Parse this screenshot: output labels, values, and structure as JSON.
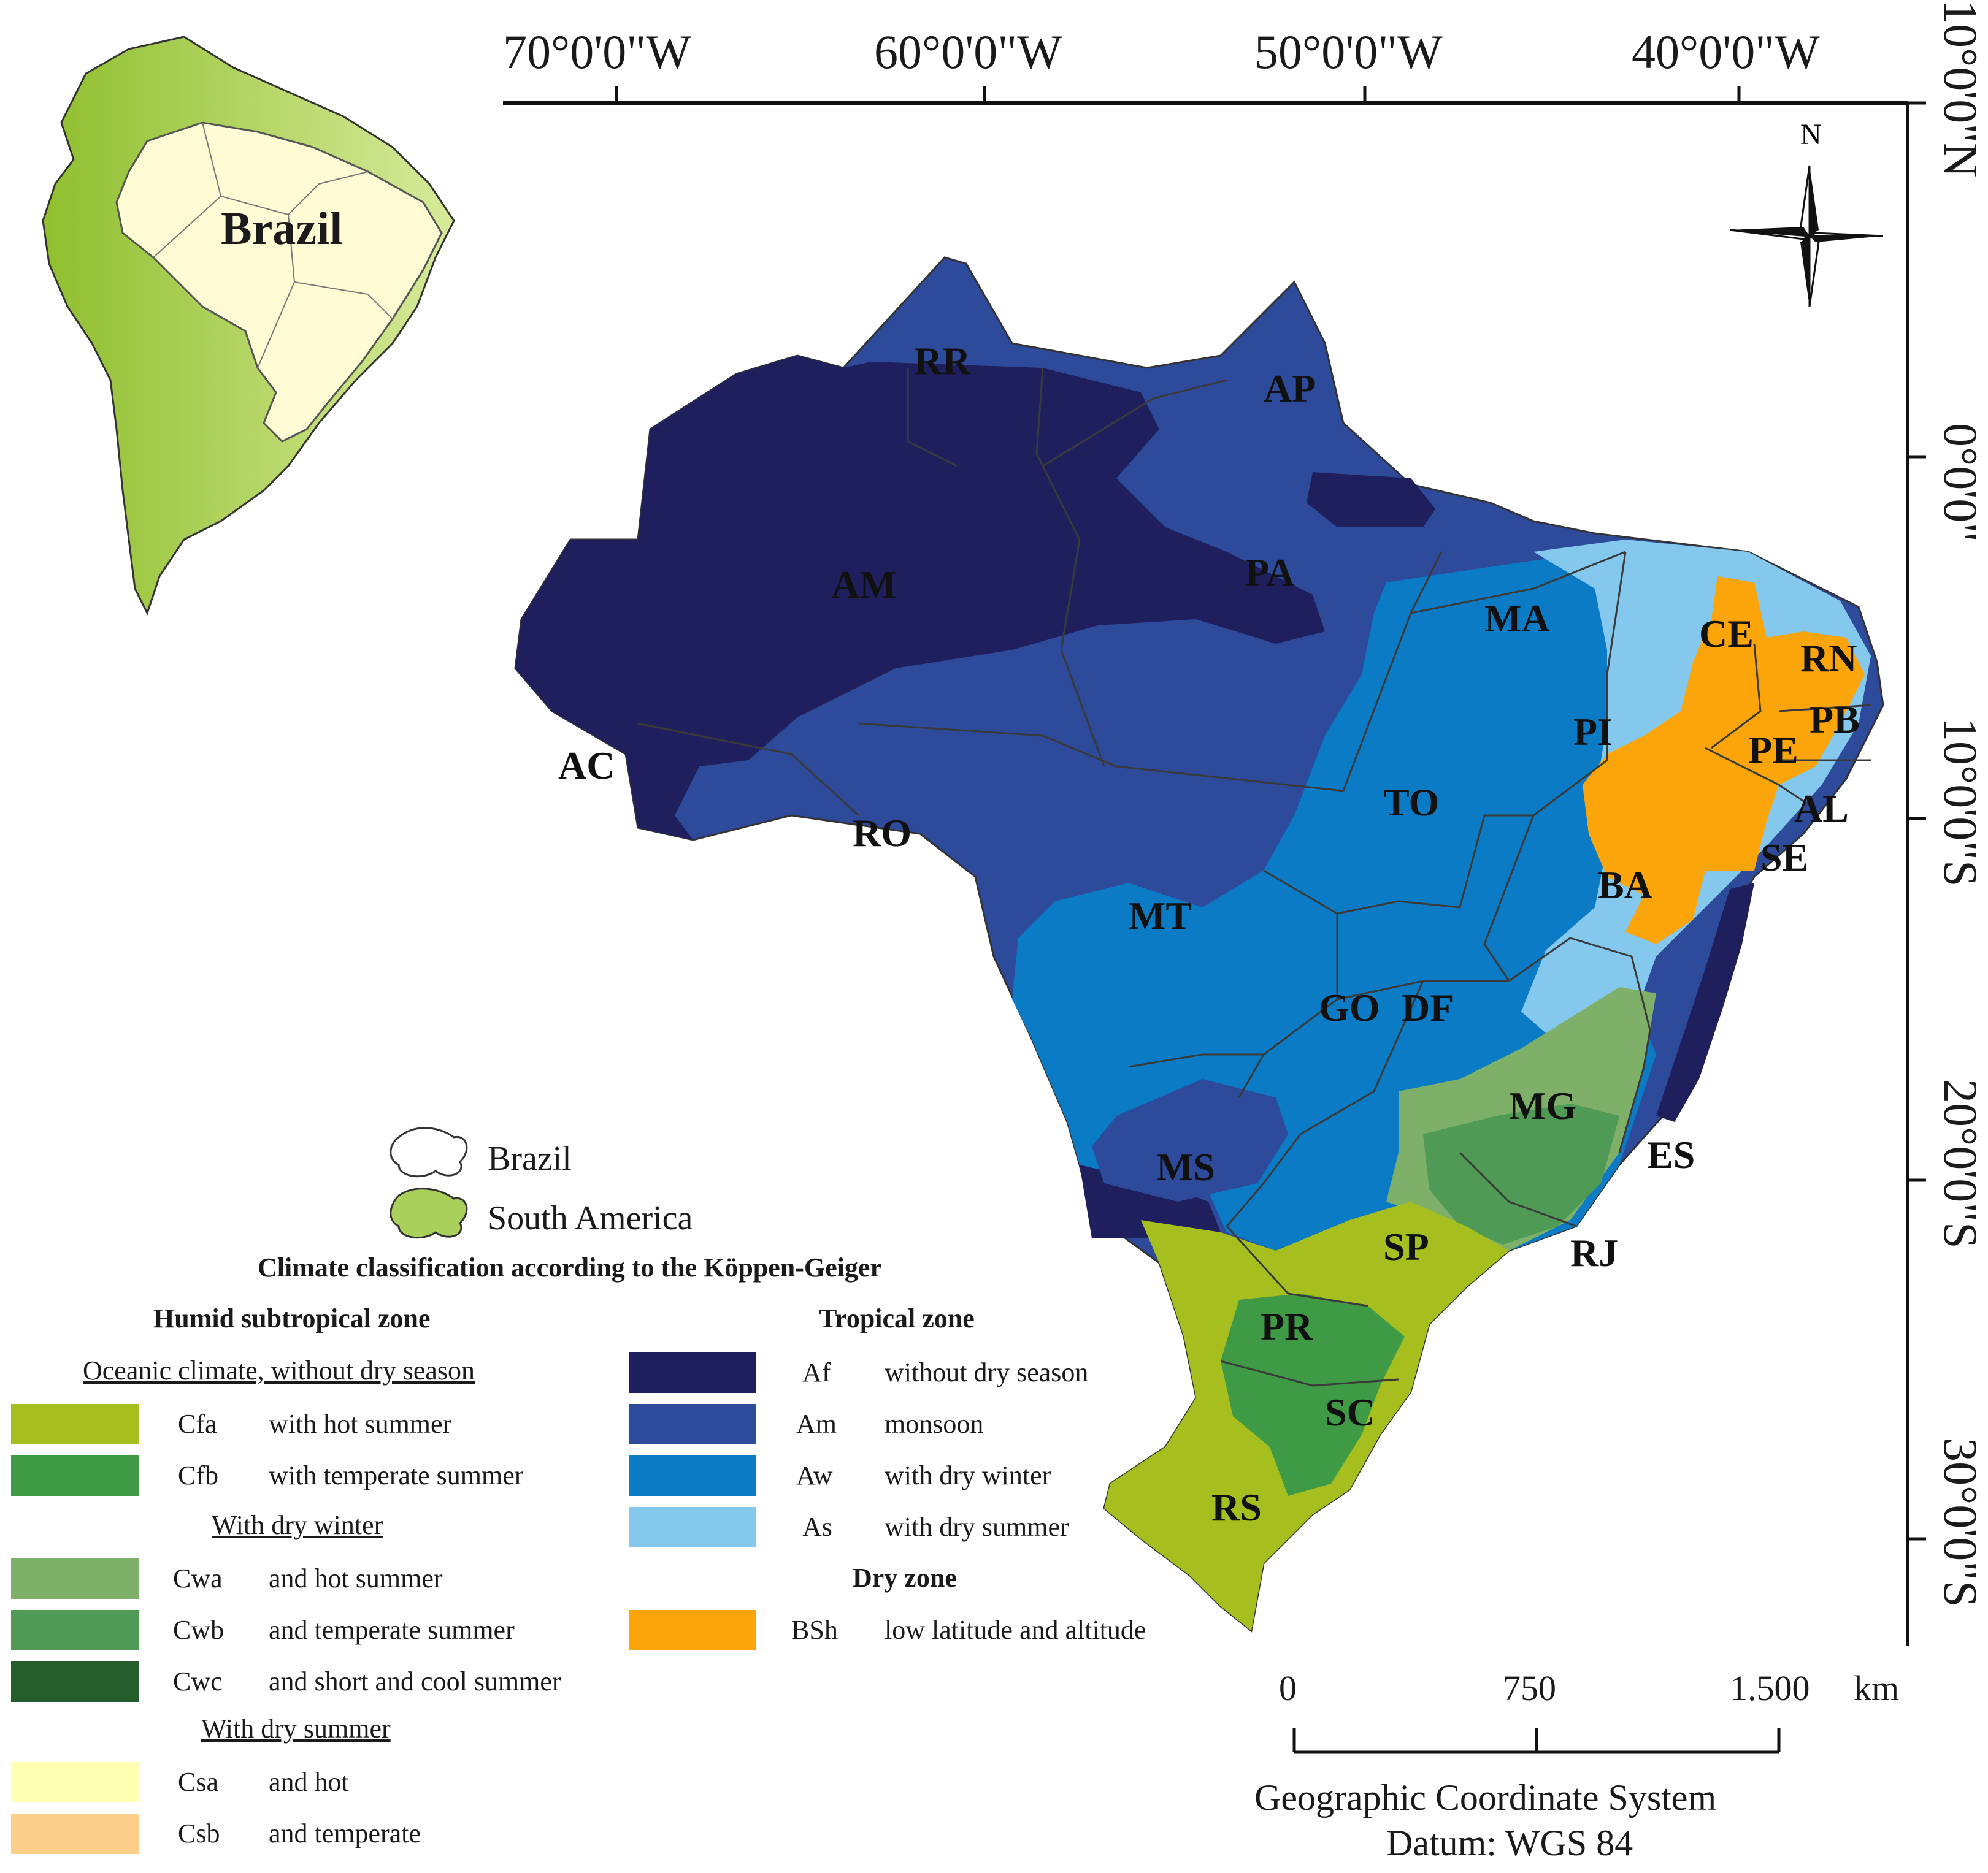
{
  "inset": {
    "title": "Brazil"
  },
  "coordinates": {
    "longitude": [
      "70°0'0\"W",
      "60°0'0\"W",
      "50°0'0\"W",
      "40°0'0\"W"
    ],
    "latitude": [
      "10°0'0\"N",
      "0°0'0\"",
      "10°0'0\"S",
      "20°0'0\"S",
      "30°0'0\"S"
    ]
  },
  "north_arrow": {
    "label": "N"
  },
  "states": [
    "RR",
    "AP",
    "AM",
    "PA",
    "MA",
    "CE",
    "RN",
    "PB",
    "PE",
    "PI",
    "AL",
    "SE",
    "AC",
    "RO",
    "TO",
    "MT",
    "BA",
    "GO",
    "DF",
    "MG",
    "ES",
    "MS",
    "SP",
    "RJ",
    "PR",
    "SC",
    "RS"
  ],
  "map_legend": {
    "brazil": "Brazil",
    "south_america": "South America"
  },
  "legend": {
    "title": "Climate classification according to the Köppen-Geiger",
    "humid_subtropical": {
      "heading": "Humid subtropical zone",
      "oceanic_heading": "Oceanic climate, without dry season",
      "dry_winter_heading": "With dry winter",
      "dry_summer_heading": "With dry summer",
      "classes": [
        {
          "code": "Cfa",
          "desc": "with hot summer",
          "color": "#a6bf1f"
        },
        {
          "code": "Cfb",
          "desc": "with temperate summer",
          "color": "#3f9a46"
        },
        {
          "code": "Cwa",
          "desc": "and hot summer",
          "color": "#7fb069"
        },
        {
          "code": "Cwb",
          "desc": "and temperate summer",
          "color": "#4f9a55"
        },
        {
          "code": "Cwc",
          "desc": "and short and cool summer",
          "color": "#245c2c"
        },
        {
          "code": "Csa",
          "desc": "and hot",
          "color": "#ffffb3"
        },
        {
          "code": "Csb",
          "desc": "and temperate",
          "color": "#fcd08a"
        }
      ]
    },
    "tropical": {
      "heading": "Tropical zone",
      "classes": [
        {
          "code": "Af",
          "desc": "without dry season",
          "color": "#1f1f5e"
        },
        {
          "code": "Am",
          "desc": "monsoon",
          "color": "#2e4a9a"
        },
        {
          "code": "Aw",
          "desc": "with dry winter",
          "color": "#0a7bc4"
        },
        {
          "code": "As",
          "desc": "with dry summer",
          "color": "#85c8ee"
        }
      ]
    },
    "dry": {
      "heading": "Dry zone",
      "classes": [
        {
          "code": "BSh",
          "desc": "low latitude and altitude",
          "color": "#fba50a"
        }
      ]
    }
  },
  "scale_bar": {
    "ticks": [
      "0",
      "750",
      "1.500"
    ],
    "unit": "km"
  },
  "footer": {
    "line1": "Geographic Coordinate System",
    "line2": "Datum: WGS 84"
  }
}
